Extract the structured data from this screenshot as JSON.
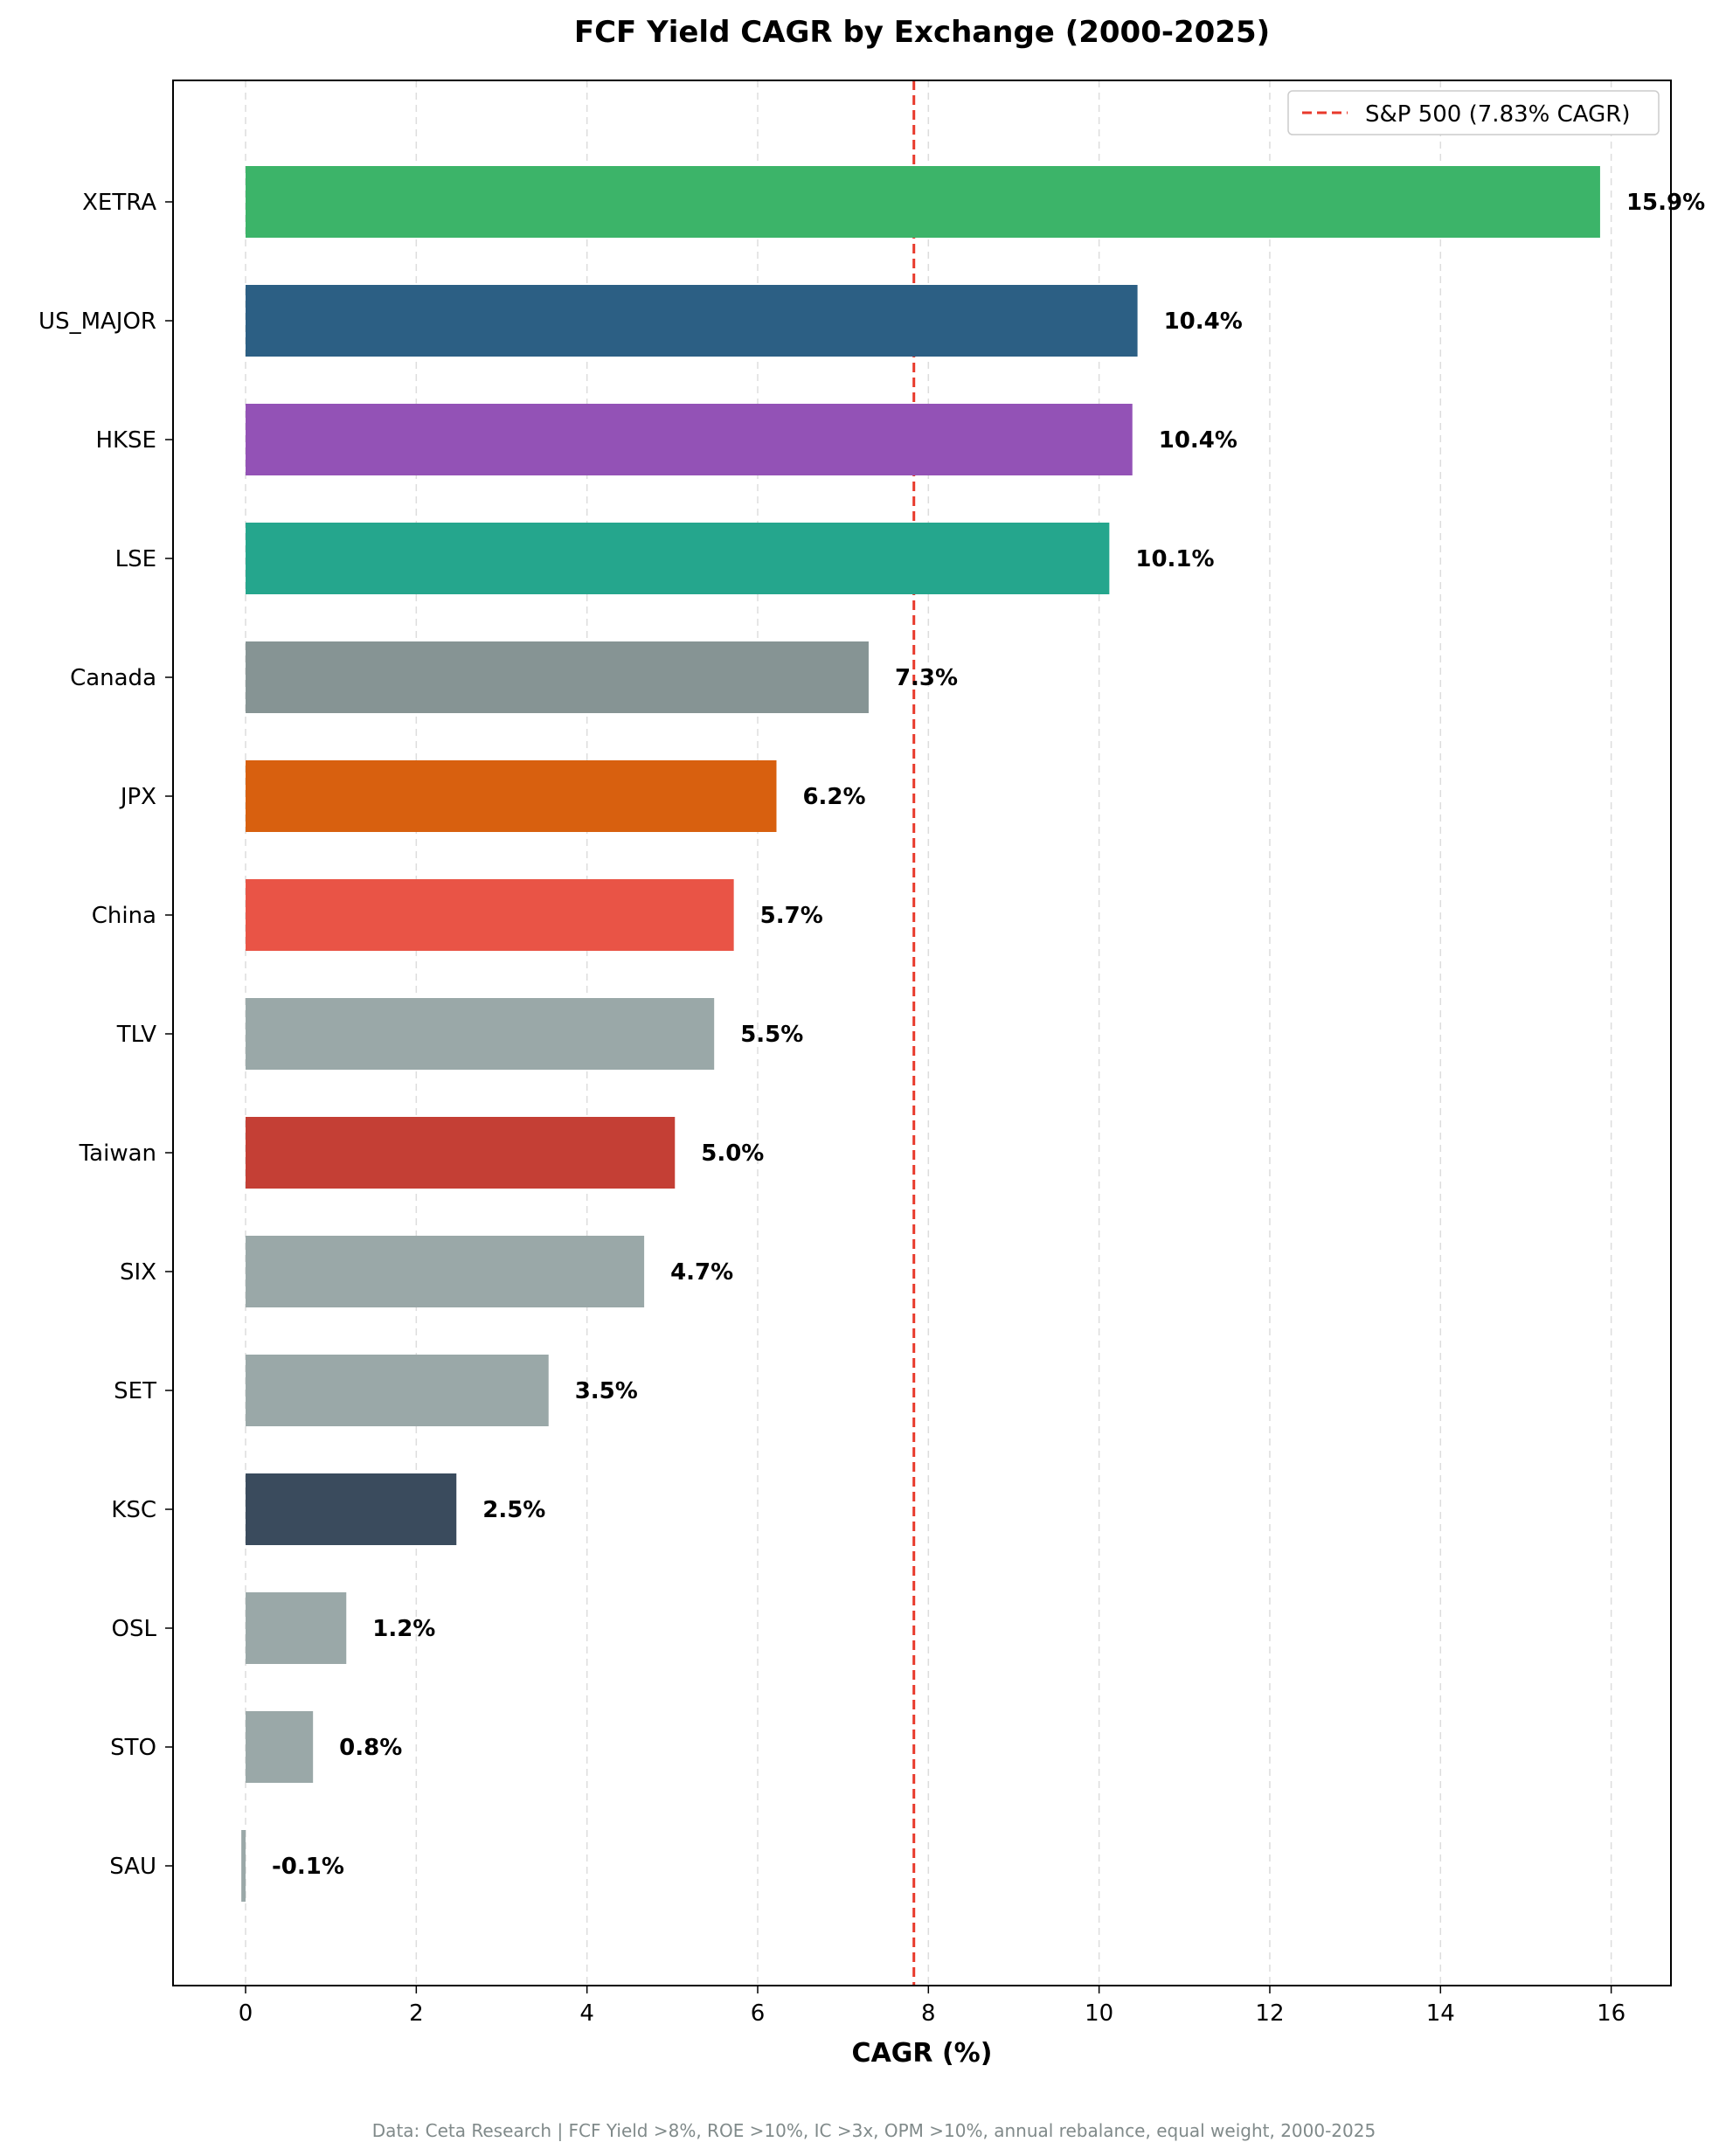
{
  "chart_data": {
    "type": "bar",
    "orientation": "horizontal",
    "title": "FCF Yield CAGR by Exchange (2000-2025)",
    "xlabel": "CAGR (%)",
    "ylabel": "",
    "xlim": [
      -0.85,
      16.7
    ],
    "xticks": [
      0,
      2,
      4,
      6,
      8,
      10,
      12,
      14,
      16
    ],
    "grid": "vertical-dashed",
    "categories": [
      "XETRA",
      "US_MAJOR",
      "HKSE",
      "LSE",
      "Canada",
      "JPX",
      "China",
      "TLV",
      "Taiwan",
      "SIX",
      "SET",
      "KSC",
      "OSL",
      "STO",
      "SAU"
    ],
    "values": [
      15.87,
      10.45,
      10.39,
      10.12,
      7.3,
      6.22,
      5.72,
      5.49,
      5.03,
      4.67,
      3.55,
      2.47,
      1.18,
      0.79,
      -0.05
    ],
    "value_labels": [
      "15.9%",
      "10.4%",
      "10.4%",
      "10.1%",
      "7.3%",
      "6.2%",
      "5.7%",
      "5.5%",
      "5.0%",
      "4.7%",
      "3.5%",
      "2.5%",
      "1.2%",
      "0.8%",
      "-0.1%"
    ],
    "colors": [
      "#3cb469",
      "#2c5f84",
      "#9352b6",
      "#25a68d",
      "#869494",
      "#d8600f",
      "#e95446",
      "#9aa8a8",
      "#c43f35",
      "#9aa8a8",
      "#9aa8a8",
      "#3a4b5d",
      "#9aa8a8",
      "#9aa8a8",
      "#9aa8a8"
    ],
    "reference_line": {
      "value": 7.83,
      "label": "S&P 500 (7.83% CAGR)",
      "color": "#e8392b",
      "style": "dashed"
    },
    "legend_position": "top-right",
    "footnote": "Data: Ceta Research | FCF Yield >8%, ROE >10%, IC >3x, OPM >10%, annual rebalance, equal weight, 2000-2025"
  }
}
